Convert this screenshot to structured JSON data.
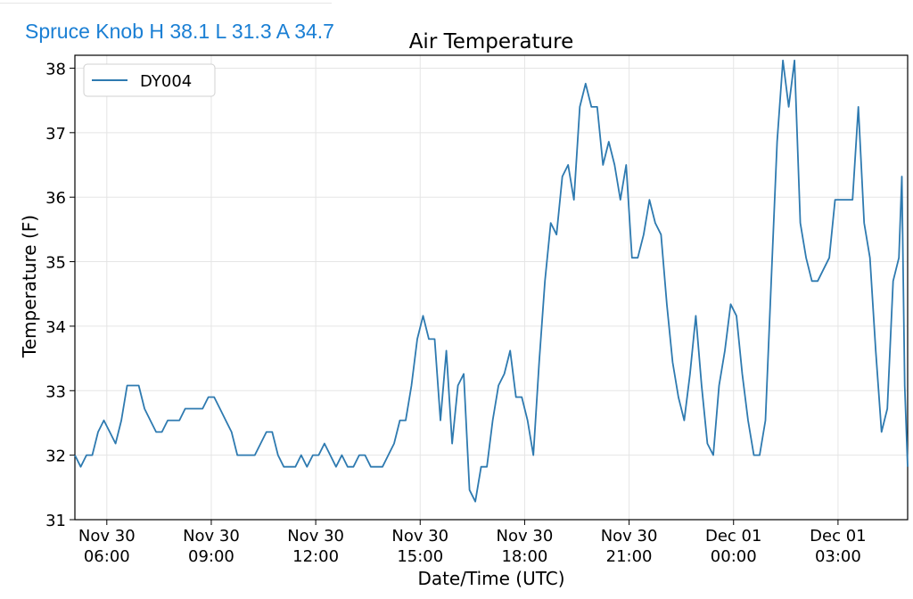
{
  "header": {
    "station_summary": "Spruce Knob H 38.1 L 31.3 A 34.7"
  },
  "colors": {
    "header_text": "#1a7fd4",
    "series_line": "#2e7ab0",
    "grid": "#e5e5e5"
  },
  "chart_data": {
    "type": "line",
    "title": "Air Temperature",
    "xlabel": "Date/Time (UTC)",
    "ylabel": "Temperature (F)",
    "grid": true,
    "legend_position": "top-left",
    "x_unit": "UTC",
    "xlim": [
      "2023-11-30T05:05",
      "2023-12-01T05:00"
    ],
    "ylim": [
      31,
      38.2
    ],
    "y_ticks": [
      31,
      32,
      33,
      34,
      35,
      36,
      37,
      38
    ],
    "x_ticks": [
      {
        "t": "2023-11-30T06:00",
        "line1": "Nov 30",
        "line2": "06:00"
      },
      {
        "t": "2023-11-30T09:00",
        "line1": "Nov 30",
        "line2": "09:00"
      },
      {
        "t": "2023-11-30T12:00",
        "line1": "Nov 30",
        "line2": "12:00"
      },
      {
        "t": "2023-11-30T15:00",
        "line1": "Nov 30",
        "line2": "15:00"
      },
      {
        "t": "2023-11-30T18:00",
        "line1": "Nov 30",
        "line2": "18:00"
      },
      {
        "t": "2023-11-30T21:00",
        "line1": "Nov 30",
        "line2": "21:00"
      },
      {
        "t": "2023-12-01T00:00",
        "line1": "Dec 01",
        "line2": "00:00"
      },
      {
        "t": "2023-12-01T03:00",
        "line1": "Dec 01",
        "line2": "03:00"
      }
    ],
    "series": [
      {
        "name": "DY004",
        "points": [
          [
            "2023-11-30T05:05",
            32.0
          ],
          [
            "2023-11-30T05:15",
            31.82
          ],
          [
            "2023-11-30T05:25",
            32.0
          ],
          [
            "2023-11-30T05:35",
            32.0
          ],
          [
            "2023-11-30T05:45",
            32.36
          ],
          [
            "2023-11-30T05:55",
            32.54
          ],
          [
            "2023-11-30T06:05",
            32.36
          ],
          [
            "2023-11-30T06:15",
            32.18
          ],
          [
            "2023-11-30T06:25",
            32.54
          ],
          [
            "2023-11-30T06:35",
            33.08
          ],
          [
            "2023-11-30T06:45",
            33.08
          ],
          [
            "2023-11-30T06:55",
            33.08
          ],
          [
            "2023-11-30T07:05",
            32.72
          ],
          [
            "2023-11-30T07:15",
            32.54
          ],
          [
            "2023-11-30T07:25",
            32.36
          ],
          [
            "2023-11-30T07:35",
            32.36
          ],
          [
            "2023-11-30T07:45",
            32.54
          ],
          [
            "2023-11-30T07:55",
            32.54
          ],
          [
            "2023-11-30T08:05",
            32.54
          ],
          [
            "2023-11-30T08:15",
            32.72
          ],
          [
            "2023-11-30T08:25",
            32.72
          ],
          [
            "2023-11-30T08:35",
            32.72
          ],
          [
            "2023-11-30T08:45",
            32.72
          ],
          [
            "2023-11-30T08:55",
            32.9
          ],
          [
            "2023-11-30T09:05",
            32.9
          ],
          [
            "2023-11-30T09:15",
            32.72
          ],
          [
            "2023-11-30T09:25",
            32.54
          ],
          [
            "2023-11-30T09:35",
            32.36
          ],
          [
            "2023-11-30T09:45",
            32.0
          ],
          [
            "2023-11-30T09:55",
            32.0
          ],
          [
            "2023-11-30T10:05",
            32.0
          ],
          [
            "2023-11-30T10:15",
            32.0
          ],
          [
            "2023-11-30T10:25",
            32.18
          ],
          [
            "2023-11-30T10:35",
            32.36
          ],
          [
            "2023-11-30T10:45",
            32.36
          ],
          [
            "2023-11-30T10:55",
            32.0
          ],
          [
            "2023-11-30T11:05",
            31.82
          ],
          [
            "2023-11-30T11:15",
            31.82
          ],
          [
            "2023-11-30T11:25",
            31.82
          ],
          [
            "2023-11-30T11:35",
            32.0
          ],
          [
            "2023-11-30T11:45",
            31.82
          ],
          [
            "2023-11-30T11:55",
            32.0
          ],
          [
            "2023-11-30T12:05",
            32.0
          ],
          [
            "2023-11-30T12:15",
            32.18
          ],
          [
            "2023-11-30T12:25",
            32.0
          ],
          [
            "2023-11-30T12:35",
            31.82
          ],
          [
            "2023-11-30T12:45",
            32.0
          ],
          [
            "2023-11-30T12:55",
            31.82
          ],
          [
            "2023-11-30T13:05",
            31.82
          ],
          [
            "2023-11-30T13:15",
            32.0
          ],
          [
            "2023-11-30T13:25",
            32.0
          ],
          [
            "2023-11-30T13:35",
            31.82
          ],
          [
            "2023-11-30T13:45",
            31.82
          ],
          [
            "2023-11-30T13:55",
            31.82
          ],
          [
            "2023-11-30T14:05",
            32.0
          ],
          [
            "2023-11-30T14:15",
            32.18
          ],
          [
            "2023-11-30T14:25",
            32.54
          ],
          [
            "2023-11-30T14:35",
            32.54
          ],
          [
            "2023-11-30T14:45",
            33.08
          ],
          [
            "2023-11-30T14:55",
            33.8
          ],
          [
            "2023-11-30T15:05",
            34.16
          ],
          [
            "2023-11-30T15:15",
            33.8
          ],
          [
            "2023-11-30T15:25",
            33.8
          ],
          [
            "2023-11-30T15:35",
            32.54
          ],
          [
            "2023-11-30T15:45",
            33.62
          ],
          [
            "2023-11-30T15:55",
            32.18
          ],
          [
            "2023-11-30T16:05",
            33.08
          ],
          [
            "2023-11-30T16:15",
            33.26
          ],
          [
            "2023-11-30T16:25",
            31.46
          ],
          [
            "2023-11-30T16:35",
            31.28
          ],
          [
            "2023-11-30T16:45",
            31.82
          ],
          [
            "2023-11-30T16:55",
            31.82
          ],
          [
            "2023-11-30T17:05",
            32.54
          ],
          [
            "2023-11-30T17:15",
            33.08
          ],
          [
            "2023-11-30T17:25",
            33.26
          ],
          [
            "2023-11-30T17:35",
            33.62
          ],
          [
            "2023-11-30T17:45",
            32.9
          ],
          [
            "2023-11-30T17:55",
            32.9
          ],
          [
            "2023-11-30T18:05",
            32.54
          ],
          [
            "2023-11-30T18:15",
            32.0
          ],
          [
            "2023-11-30T18:25",
            33.44
          ],
          [
            "2023-11-30T18:35",
            34.7
          ],
          [
            "2023-11-30T18:45",
            35.6
          ],
          [
            "2023-11-30T18:55",
            35.42
          ],
          [
            "2023-11-30T19:05",
            36.32
          ],
          [
            "2023-11-30T19:15",
            36.5
          ],
          [
            "2023-11-30T19:25",
            35.96
          ],
          [
            "2023-11-30T19:35",
            37.4
          ],
          [
            "2023-11-30T19:45",
            37.76
          ],
          [
            "2023-11-30T19:55",
            37.4
          ],
          [
            "2023-11-30T20:05",
            37.4
          ],
          [
            "2023-11-30T20:15",
            36.5
          ],
          [
            "2023-11-30T20:25",
            36.86
          ],
          [
            "2023-11-30T20:35",
            36.5
          ],
          [
            "2023-11-30T20:45",
            35.96
          ],
          [
            "2023-11-30T20:55",
            36.5
          ],
          [
            "2023-11-30T21:05",
            35.06
          ],
          [
            "2023-11-30T21:15",
            35.06
          ],
          [
            "2023-11-30T21:25",
            35.42
          ],
          [
            "2023-11-30T21:35",
            35.96
          ],
          [
            "2023-11-30T21:45",
            35.6
          ],
          [
            "2023-11-30T21:55",
            35.42
          ],
          [
            "2023-11-30T22:05",
            34.34
          ],
          [
            "2023-11-30T22:15",
            33.44
          ],
          [
            "2023-11-30T22:25",
            32.9
          ],
          [
            "2023-11-30T22:35",
            32.54
          ],
          [
            "2023-11-30T22:45",
            33.26
          ],
          [
            "2023-11-30T22:55",
            34.16
          ],
          [
            "2023-11-30T23:05",
            33.08
          ],
          [
            "2023-11-30T23:15",
            32.18
          ],
          [
            "2023-11-30T23:25",
            32.0
          ],
          [
            "2023-11-30T23:35",
            33.08
          ],
          [
            "2023-11-30T23:45",
            33.62
          ],
          [
            "2023-11-30T23:55",
            34.34
          ],
          [
            "2023-12-01T00:05",
            34.16
          ],
          [
            "2023-12-01T00:15",
            33.26
          ],
          [
            "2023-12-01T00:25",
            32.54
          ],
          [
            "2023-12-01T00:35",
            32.0
          ],
          [
            "2023-12-01T00:45",
            32.0
          ],
          [
            "2023-12-01T00:55",
            32.54
          ],
          [
            "2023-12-01T01:05",
            34.7
          ],
          [
            "2023-12-01T01:15",
            36.86
          ],
          [
            "2023-12-01T01:25",
            38.12
          ],
          [
            "2023-12-01T01:35",
            37.4
          ],
          [
            "2023-12-01T01:45",
            38.12
          ],
          [
            "2023-12-01T01:55",
            35.6
          ],
          [
            "2023-12-01T02:05",
            35.06
          ],
          [
            "2023-12-01T02:15",
            34.7
          ],
          [
            "2023-12-01T02:25",
            34.7
          ],
          [
            "2023-12-01T02:35",
            34.88
          ],
          [
            "2023-12-01T02:45",
            35.06
          ],
          [
            "2023-12-01T02:55",
            35.96
          ],
          [
            "2023-12-01T03:05",
            35.96
          ],
          [
            "2023-12-01T03:15",
            35.96
          ],
          [
            "2023-12-01T03:25",
            35.96
          ],
          [
            "2023-12-01T03:35",
            37.4
          ],
          [
            "2023-12-01T03:45",
            35.6
          ],
          [
            "2023-12-01T03:55",
            35.06
          ],
          [
            "2023-12-01T04:05",
            33.62
          ],
          [
            "2023-12-01T04:15",
            32.36
          ],
          [
            "2023-12-01T04:25",
            32.72
          ],
          [
            "2023-12-01T04:35",
            34.7
          ],
          [
            "2023-12-01T04:45",
            35.06
          ],
          [
            "2023-12-01T04:50",
            36.32
          ],
          [
            "2023-12-01T04:55",
            33.08
          ],
          [
            "2023-12-01T05:00",
            31.82
          ]
        ]
      }
    ]
  }
}
